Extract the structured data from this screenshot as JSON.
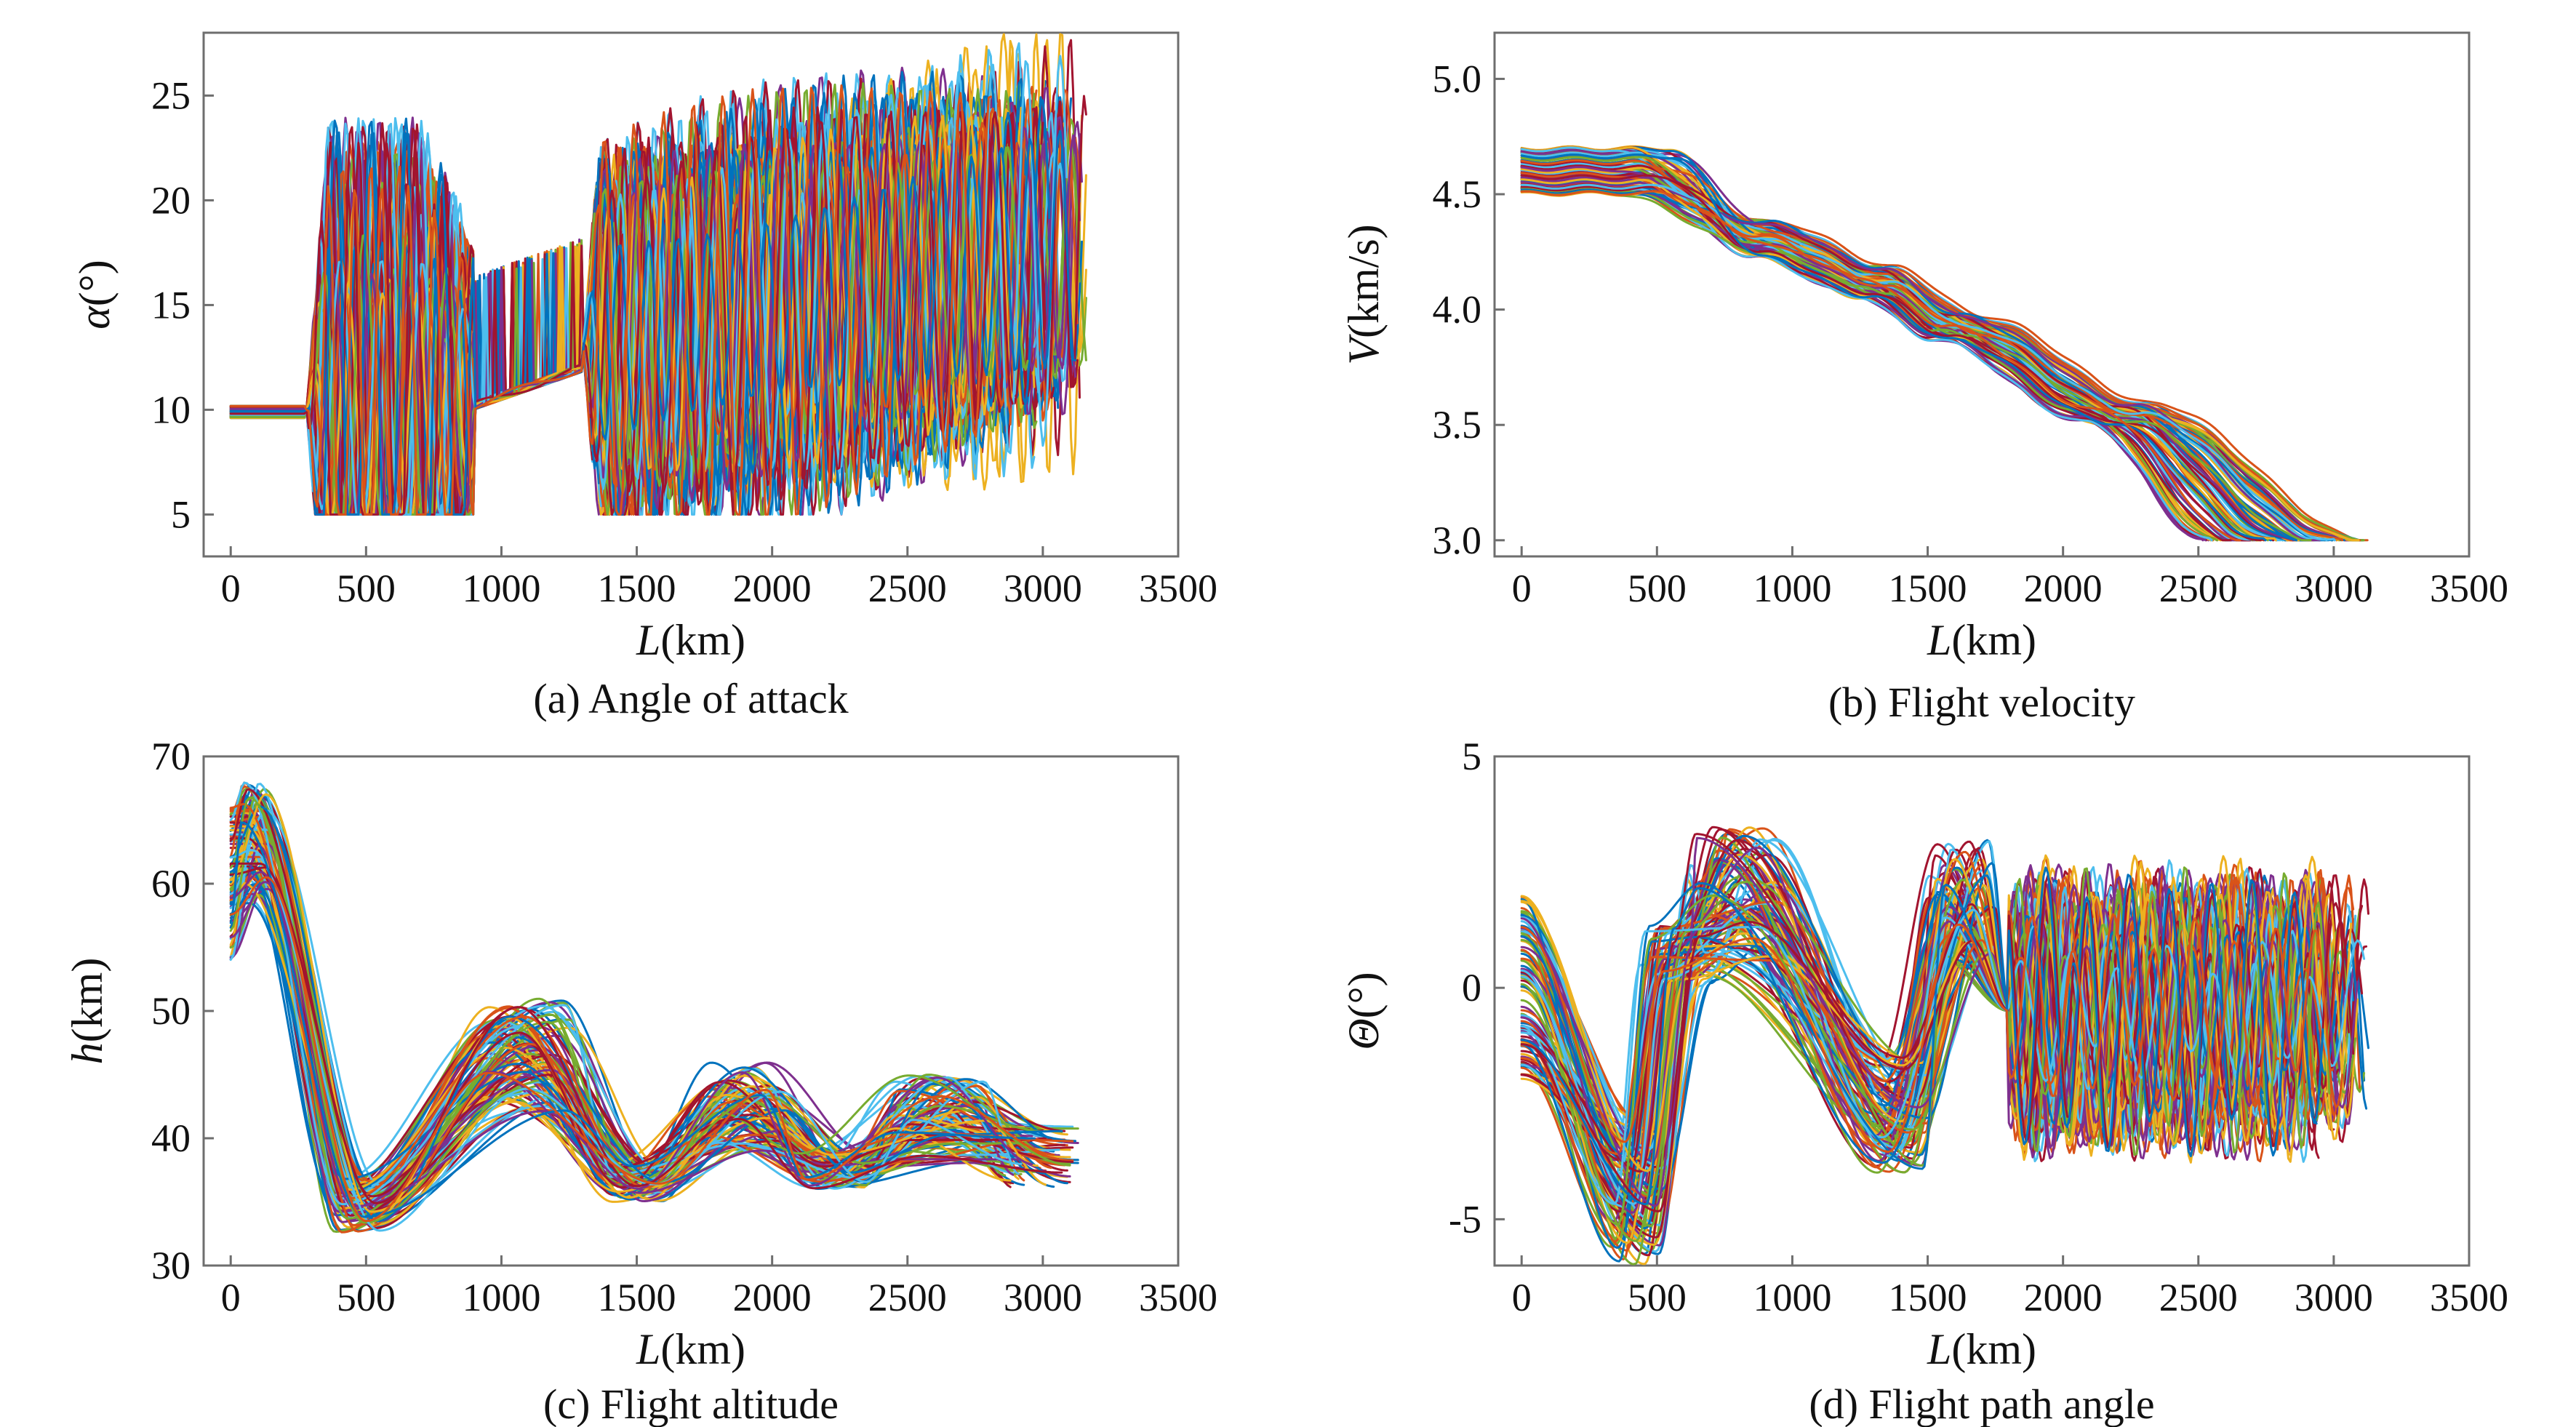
{
  "figure": {
    "description_free": true
  },
  "palette": [
    "#0072BD",
    "#D95319",
    "#EDB120",
    "#7E2F8E",
    "#77AC30",
    "#4DBEEE",
    "#A2142F"
  ],
  "chart_data": [
    {
      "id": "a",
      "type": "line",
      "title": "(a) Angle of attack",
      "xlabel_italic": "L",
      "xlabel_unit": "(km)",
      "ylabel_italic": "α",
      "ylabel_unit": "(°)",
      "xlim": [
        -100,
        3500
      ],
      "ylim": [
        3,
        28
      ],
      "xticks": [
        0,
        500,
        1000,
        1500,
        2000,
        2500,
        3000,
        3500
      ],
      "xtick_labels": [
        "0",
        "500",
        "1000",
        "1500",
        "2000",
        "2500",
        "3000",
        "3500"
      ],
      "yticks": [
        5,
        10,
        15,
        20,
        25
      ],
      "ytick_labels": [
        "5",
        "10",
        "15",
        "20",
        "25"
      ],
      "series_count": 100,
      "model": {
        "x_end_range": [
          2780,
          3170
        ],
        "floor": 5,
        "phases": [
          {
            "from": 0,
            "to": 280,
            "kind": "flat",
            "level": 10
          },
          {
            "from": 280,
            "to": 900,
            "kind": "oscillate",
            "base": 10,
            "amp_range": [
              4,
              14
            ],
            "period": 120
          },
          {
            "from": 900,
            "to": 1300,
            "kind": "ramp",
            "start": 10.2,
            "end": 12
          },
          {
            "from": 1300,
            "to": 3170,
            "kind": "oscillate",
            "base": 13,
            "trend_end": 18,
            "amp_range": [
              5,
              10
            ],
            "period": 110
          }
        ]
      }
    },
    {
      "id": "b",
      "type": "line",
      "title": "(b) Flight velocity",
      "xlabel_italic": "L",
      "xlabel_unit": "(km)",
      "ylabel_italic": "V",
      "ylabel_unit": "(km/s)",
      "xlim": [
        -100,
        3500
      ],
      "ylim": [
        2.93,
        5.2
      ],
      "xticks": [
        0,
        500,
        1000,
        1500,
        2000,
        2500,
        3000,
        3500
      ],
      "xtick_labels": [
        "0",
        "500",
        "1000",
        "1500",
        "2000",
        "2500",
        "3000",
        "3500"
      ],
      "yticks": [
        3.0,
        3.5,
        4.0,
        4.5,
        5.0
      ],
      "ytick_labels": [
        "3.0",
        "3.5",
        "4.0",
        "4.5",
        "5.0"
      ],
      "series_count": 100,
      "model": {
        "v_start_range": [
          4.5,
          4.7
        ],
        "plateau_end_range": [
          300,
          560
        ],
        "x_end_range": [
          2500,
          3140
        ],
        "v_end": 3.0,
        "waypoints": [
          [
            900,
            4.3
          ],
          [
            1300,
            4.12
          ],
          [
            1600,
            3.92
          ],
          [
            2200,
            3.55
          ]
        ]
      }
    },
    {
      "id": "c",
      "type": "line",
      "title": "(c) Flight altitude",
      "xlabel_italic": "L",
      "xlabel_unit": "(km)",
      "ylabel_italic": "h",
      "ylabel_unit": "(km)",
      "xlim": [
        -100,
        3500
      ],
      "ylim": [
        30,
        70
      ],
      "xticks": [
        0,
        500,
        1000,
        1500,
        2000,
        2500,
        3000,
        3500
      ],
      "xtick_labels": [
        "0",
        "500",
        "1000",
        "1500",
        "2000",
        "2500",
        "3000",
        "3500"
      ],
      "yticks": [
        30,
        40,
        50,
        60,
        70
      ],
      "ytick_labels": [
        "30",
        "40",
        "50",
        "60",
        "70"
      ],
      "series_count": 100,
      "model": {
        "h_start_range": [
          54,
          66
        ],
        "peak1_range": [
          58,
          68
        ],
        "trough1": [
          [
            380,
            560
          ],
          [
            32.5,
            37
          ]
        ],
        "peak2": [
          [
            950,
            1250
          ],
          [
            42,
            51
          ]
        ],
        "trough2": [
          [
            1400,
            1600
          ],
          [
            35,
            38
          ]
        ],
        "peak3": [
          [
            1750,
            2050
          ],
          [
            39,
            46
          ]
        ],
        "trough3": [
          [
            2100,
            2400
          ],
          [
            36,
            39
          ]
        ],
        "peak4": [
          [
            2450,
            2800
          ],
          [
            38,
            45
          ]
        ],
        "x_end_range": [
          2850,
          3140
        ],
        "h_end_range": [
          36,
          41
        ]
      }
    },
    {
      "id": "d",
      "type": "line",
      "title": "(d) Flight path angle",
      "xlabel_italic": "L",
      "xlabel_unit": "(km)",
      "ylabel_italic": "Θ",
      "ylabel_unit": "(°)",
      "xlim": [
        -100,
        3500
      ],
      "ylim": [
        -6,
        5
      ],
      "xticks": [
        0,
        500,
        1000,
        1500,
        2000,
        2500,
        3000,
        3500
      ],
      "xtick_labels": [
        "0",
        "500",
        "1000",
        "1500",
        "2000",
        "2500",
        "3000",
        "3500"
      ],
      "yticks": [
        -5,
        0,
        5
      ],
      "ytick_labels": [
        "-5",
        "0",
        "5"
      ],
      "series_count": 100,
      "model": {
        "start_range": [
          -2,
          2
        ],
        "min1": [
          [
            330,
            520
          ],
          [
            -6,
            -3
          ]
        ],
        "max1": [
          [
            600,
            950
          ],
          [
            0.5,
            3.5
          ]
        ],
        "min2": [
          [
            1300,
            1500
          ],
          [
            -4,
            -1.5
          ]
        ],
        "max2": [
          [
            1500,
            1750
          ],
          [
            0.5,
            3.2
          ]
        ],
        "osc": {
          "from": 1800,
          "base": -0.5,
          "amp_range": [
            1,
            3
          ],
          "period": 150
        },
        "x_end_range": [
          2850,
          3140
        ]
      }
    }
  ]
}
